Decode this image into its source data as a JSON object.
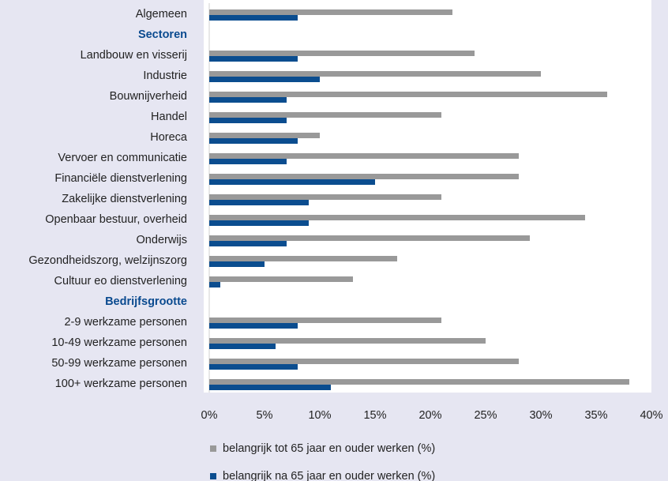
{
  "chart_data": {
    "type": "hbar",
    "categories": [
      "Algemeen",
      "Sectoren",
      "Landbouw en visserij",
      "Industrie",
      "Bouwnijverheid",
      "Handel",
      "Horeca",
      "Vervoer en communicatie",
      "Financiële dienstverlening",
      "Zakelijke dienstverlening",
      "Openbaar bestuur, overheid",
      "Onderwijs",
      "Gezondheidszorg, welzijnszorg",
      "Cultuur eo dienstverlening",
      "Bedrijfsgrootte",
      "2-9 werkzame personen",
      "10-49 werkzame personen",
      "50-99 werkzame personen",
      "100+ werkzame personen"
    ],
    "series": [
      {
        "name": "belangrijk tot 65 jaar en ouder werken (%)",
        "color": "#999999",
        "values": [
          22,
          null,
          24,
          30,
          36,
          21,
          10,
          28,
          28,
          21,
          34,
          29,
          17,
          13,
          null,
          21,
          25,
          28,
          38
        ]
      },
      {
        "name": "belangrijk na 65 jaar en ouder werken (%)",
        "color": "#0b4d8f",
        "values": [
          8,
          null,
          8,
          10,
          7,
          7,
          8,
          7,
          15,
          9,
          9,
          7,
          5,
          1,
          null,
          8,
          6,
          8,
          11
        ]
      }
    ],
    "xlim": [
      0,
      40
    ],
    "xticks": [
      {
        "value": 0,
        "label": "0%"
      },
      {
        "value": 5,
        "label": "5%"
      },
      {
        "value": 10,
        "label": "10%"
      },
      {
        "value": 15,
        "label": "15%"
      },
      {
        "value": 20,
        "label": "20%"
      },
      {
        "value": 25,
        "label": "25%"
      },
      {
        "value": 30,
        "label": "30%"
      },
      {
        "value": 35,
        "label": "35%"
      },
      {
        "value": 40,
        "label": "40%"
      }
    ]
  }
}
